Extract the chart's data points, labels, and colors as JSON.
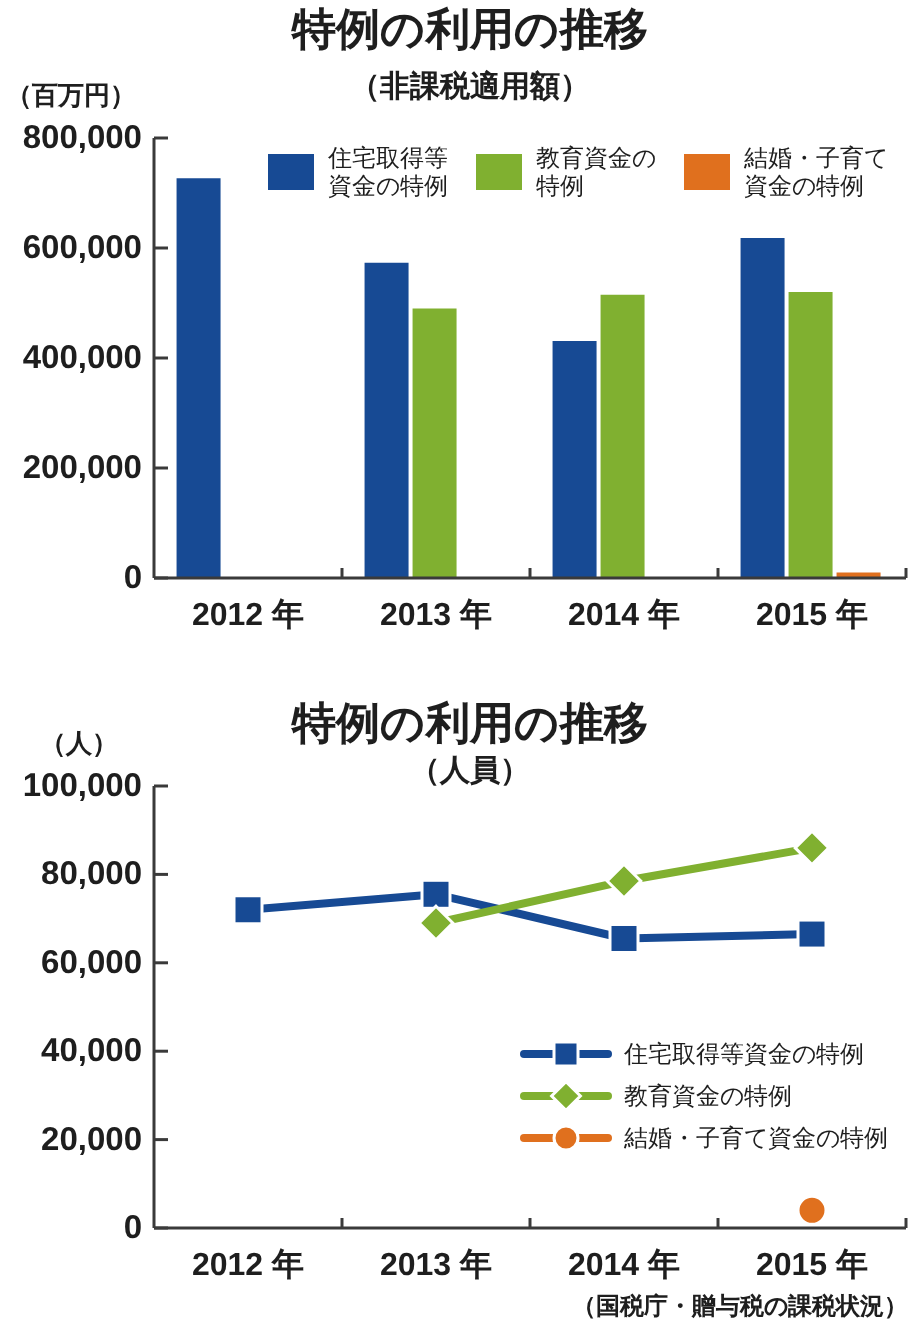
{
  "chart_data": [
    {
      "type": "bar",
      "title": "特例の利用の推移",
      "subtitle": "（非課税適用額）",
      "ylabel": "（百万円）",
      "categories": [
        "2012 年",
        "2013 年",
        "2014 年",
        "2015 年"
      ],
      "series": [
        {
          "name": "住宅取得等資金の特例",
          "color": "#174a94",
          "values": [
            727000,
            573000,
            431000,
            618000
          ]
        },
        {
          "name": "教育資金の特例",
          "color": "#80b030",
          "values": [
            null,
            490000,
            515000,
            520000
          ]
        },
        {
          "name": "結婚・子育て資金の特例",
          "color": "#e0701e",
          "values": [
            null,
            null,
            null,
            10000
          ]
        }
      ],
      "ylim": [
        0,
        800000
      ],
      "yticks": [
        0,
        {
          "value": 200000,
          "label": "200,000"
        },
        {
          "value": 400000,
          "label": "400,000"
        },
        {
          "value": 600000,
          "label": "600,000"
        },
        {
          "value": 800000,
          "label": "800,000"
        }
      ],
      "legend": "top right"
    },
    {
      "type": "line",
      "title": "特例の利用の推移",
      "subtitle": "（人員）",
      "ylabel": "（人）",
      "categories": [
        "2012 年",
        "2013 年",
        "2014 年",
        "2015 年"
      ],
      "series": [
        {
          "name": "住宅取得等資金の特例",
          "color": "#174a94",
          "marker": "square",
          "values": [
            72000,
            75500,
            65500,
            66500
          ]
        },
        {
          "name": "教育資金の特例",
          "color": "#80b030",
          "marker": "diamond",
          "values": [
            null,
            69000,
            78500,
            86000
          ]
        },
        {
          "name": "結婚・子育て資金の特例",
          "color": "#e0701e",
          "marker": "circle",
          "values": [
            null,
            null,
            null,
            4000
          ]
        }
      ],
      "ylim": [
        0,
        100000
      ],
      "yticks": [
        0,
        {
          "value": 20000,
          "label": "20,000"
        },
        {
          "value": 40000,
          "label": "40,000"
        },
        {
          "value": 60000,
          "label": "60,000"
        },
        {
          "value": 80000,
          "label": "80,000"
        },
        {
          "value": 100000,
          "label": "100,000"
        }
      ],
      "legend": "bottom right",
      "annotations": [
        "（国税庁・贈与税の課税状況）"
      ]
    }
  ]
}
